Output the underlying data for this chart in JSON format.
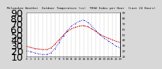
{
  "title": "Milwaukee Weather  Outdoor Temperature (vs)  THSW Index per Hour  (Last 24 Hours)",
  "bg_color": "#d8d8d8",
  "plot_bg_color": "#ffffff",
  "grid_color": "#888888",
  "hours": [
    0,
    1,
    2,
    3,
    4,
    5,
    6,
    7,
    8,
    9,
    10,
    11,
    12,
    13,
    14,
    15,
    16,
    17,
    18,
    19,
    20,
    21,
    22,
    23
  ],
  "temp": [
    28,
    26,
    24,
    23,
    22,
    22,
    25,
    32,
    40,
    48,
    55,
    60,
    63,
    65,
    66,
    64,
    60,
    55,
    50,
    46,
    43,
    40,
    37,
    35
  ],
  "thsw": [
    20,
    18,
    16,
    14,
    13,
    13,
    16,
    24,
    35,
    47,
    57,
    65,
    70,
    74,
    76,
    72,
    65,
    57,
    49,
    43,
    38,
    33,
    28,
    25
  ],
  "temp_color": "#cc0000",
  "thsw_color": "#0000cc",
  "ylim": [
    10,
    90
  ],
  "xlim": [
    0,
    23
  ],
  "title_fontsize": 3.2,
  "tick_fontsize": 2.8,
  "line_width": 0.7
}
